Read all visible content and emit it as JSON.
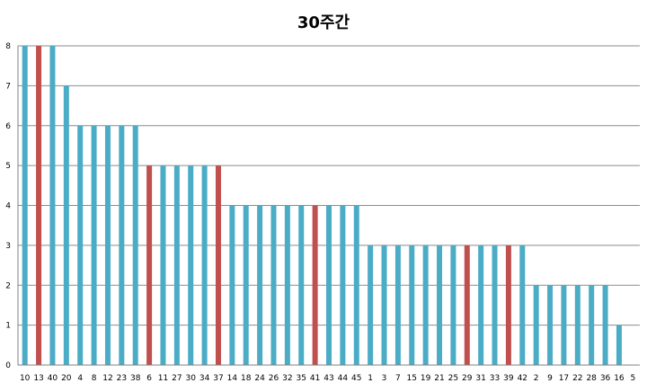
{
  "chart_data": {
    "type": "bar",
    "title": "30주간",
    "xlabel": "",
    "ylabel": "",
    "ylim": [
      0,
      8
    ],
    "yticks": [
      0,
      1,
      2,
      3,
      4,
      5,
      6,
      7,
      8
    ],
    "grid": true,
    "legend": "none",
    "categories": [
      "10",
      "13",
      "40",
      "20",
      "4",
      "8",
      "12",
      "23",
      "38",
      "6",
      "11",
      "27",
      "30",
      "34",
      "37",
      "14",
      "18",
      "24",
      "26",
      "32",
      "35",
      "41",
      "43",
      "44",
      "45",
      "1",
      "3",
      "7",
      "15",
      "19",
      "21",
      "25",
      "29",
      "31",
      "33",
      "39",
      "42",
      "2",
      "9",
      "17",
      "22",
      "28",
      "36",
      "16",
      "5"
    ],
    "values": [
      8,
      8,
      8,
      7,
      6,
      6,
      6,
      6,
      6,
      5,
      5,
      5,
      5,
      5,
      5,
      4,
      4,
      4,
      4,
      4,
      4,
      4,
      4,
      4,
      4,
      3,
      3,
      3,
      3,
      3,
      3,
      3,
      3,
      3,
      3,
      3,
      3,
      2,
      2,
      2,
      2,
      2,
      2,
      1,
      0
    ],
    "highlighted": [
      "13",
      "6",
      "37",
      "41",
      "29",
      "39"
    ],
    "colors": {
      "default": "#4bacc6",
      "highlight": "#c0504d"
    }
  }
}
